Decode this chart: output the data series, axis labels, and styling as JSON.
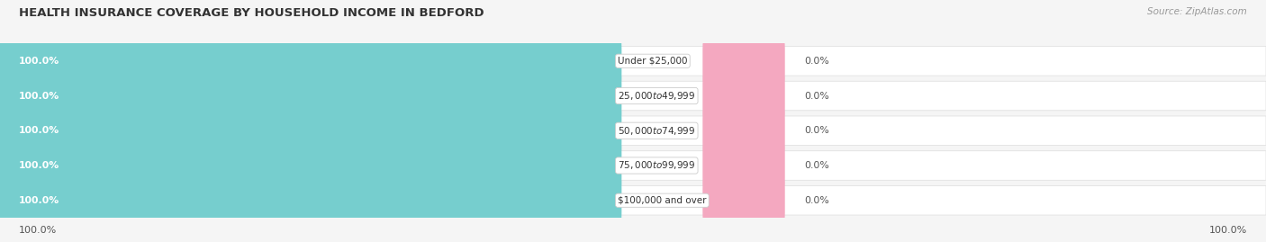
{
  "title": "HEALTH INSURANCE COVERAGE BY HOUSEHOLD INCOME IN BEDFORD",
  "source": "Source: ZipAtlas.com",
  "categories": [
    "Under $25,000",
    "$25,000 to $49,999",
    "$50,000 to $74,999",
    "$75,000 to $99,999",
    "$100,000 and over"
  ],
  "with_coverage": [
    100.0,
    100.0,
    100.0,
    100.0,
    100.0
  ],
  "without_coverage": [
    0.0,
    0.0,
    0.0,
    0.0,
    0.0
  ],
  "color_with": "#76cece",
  "color_without": "#f4a8c0",
  "background_color": "#f5f5f5",
  "row_bg": "#ffffff",
  "title_fontsize": 9.5,
  "label_fontsize": 7.8,
  "source_fontsize": 7.5,
  "legend_fontsize": 8,
  "footer_fontsize": 8
}
